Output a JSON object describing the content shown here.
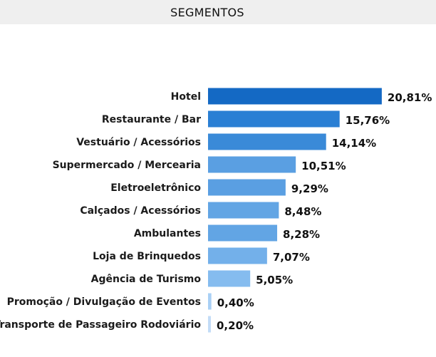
{
  "header": {
    "title": "SEGMENTOS"
  },
  "chart_data": {
    "type": "bar",
    "orientation": "horizontal",
    "categories": [
      "Hotel",
      "Restaurante / Bar",
      "Vestuário / Acessórios",
      "Supermercado / Mercearia",
      "Eletroeletrônico",
      "Calçados / Acessórios",
      "Ambulantes",
      "Loja de Brinquedos",
      "Agência de Turismo",
      "Promoção / Divulgação de Eventos",
      "Transporte de Passageiro Rodoviário"
    ],
    "values": [
      20.81,
      15.76,
      14.14,
      10.51,
      9.29,
      8.48,
      8.28,
      7.07,
      5.05,
      0.4,
      0.2
    ],
    "value_labels": [
      "20,81%",
      "15,76%",
      "14,14%",
      "10,51%",
      "9,29%",
      "8,48%",
      "8,28%",
      "7,07%",
      "5,05%",
      "0,40%",
      "0,20%"
    ],
    "colors": [
      "#1469c4",
      "#2a7fd4",
      "#3a8ad8",
      "#5a9fe2",
      "#5a9fe2",
      "#62a5e4",
      "#62a5e4",
      "#73b0ea",
      "#85bcef",
      "#a9d0f5",
      "#c3dcf7"
    ],
    "grid": false,
    "legend": "none"
  }
}
